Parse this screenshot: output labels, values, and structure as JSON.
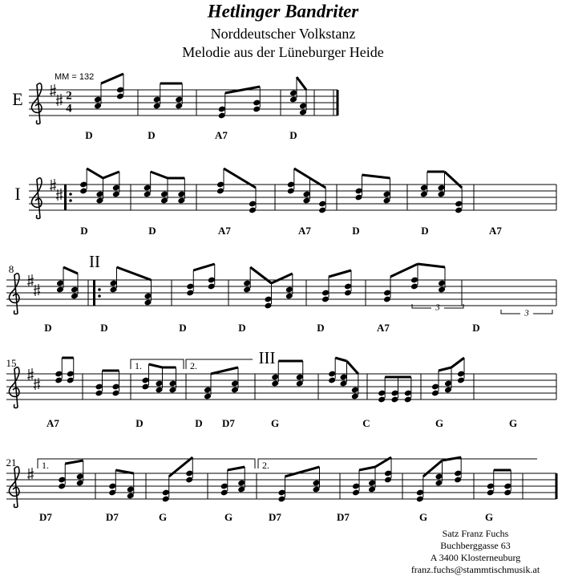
{
  "header": {
    "title": "Hetlinger Bandriter",
    "subtitle": "Norddeutscher Volkstanz",
    "subtitle2": "Melodie aus der Lüneburger Heide"
  },
  "tempo": "MM = 132",
  "time_signature": {
    "top": "2",
    "bottom": "4"
  },
  "systems": [
    {
      "label": "E",
      "chords": [
        "D",
        "D",
        "A7",
        "D"
      ]
    },
    {
      "label": "I",
      "chords": [
        "D",
        "D",
        "A7",
        "A7",
        "D",
        "D",
        "A7"
      ]
    },
    {
      "measure_number": "8",
      "section": "II",
      "chords": [
        "D",
        "D",
        "D",
        "D",
        "D",
        "A7",
        "D"
      ],
      "triplets": [
        "3",
        "3"
      ]
    },
    {
      "measure_number": "15",
      "section": "III",
      "voltas": [
        "1.",
        "2."
      ],
      "chords": [
        "A7",
        "D",
        "D",
        "D7",
        "G",
        "C",
        "G",
        "G"
      ]
    },
    {
      "measure_number": "21",
      "voltas": [
        "1.",
        "2."
      ],
      "chords": [
        "D7",
        "D7",
        "G",
        "G",
        "D7",
        "D7",
        "G",
        "G"
      ]
    }
  ],
  "footer": [
    "Satz Franz Fuchs",
    "Buchberggasse 63",
    "A 3400 Klosterneuburg",
    "franz.fuchs@stammtischmusik.at"
  ]
}
